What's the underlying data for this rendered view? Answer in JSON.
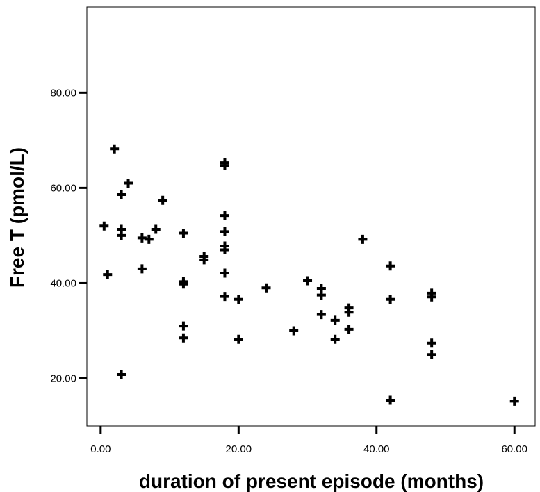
{
  "chart_data": {
    "type": "scatter",
    "title": "",
    "xlabel": "duration of present episode (months)",
    "ylabel": "Free T (pmol/L)",
    "xlim": [
      -2,
      63
    ],
    "ylim": [
      10,
      98
    ],
    "xticks": [
      {
        "value": 0,
        "label": "0.00"
      },
      {
        "value": 20,
        "label": "20.00"
      },
      {
        "value": 40,
        "label": "40.00"
      },
      {
        "value": 60,
        "label": "60.00"
      }
    ],
    "yticks": [
      {
        "value": 20,
        "label": "20.00"
      },
      {
        "value": 40,
        "label": "40.00"
      },
      {
        "value": 60,
        "label": "60.00"
      },
      {
        "value": 80,
        "label": "80.00"
      }
    ],
    "grid": false,
    "marker": "plus",
    "color": "#000000",
    "points": [
      {
        "x": 0.5,
        "y": 52.0
      },
      {
        "x": 1,
        "y": 41.8
      },
      {
        "x": 2,
        "y": 68.2
      },
      {
        "x": 3,
        "y": 58.6
      },
      {
        "x": 3,
        "y": 51.3
      },
      {
        "x": 3,
        "y": 50.0
      },
      {
        "x": 3,
        "y": 20.8
      },
      {
        "x": 4,
        "y": 61.0
      },
      {
        "x": 6,
        "y": 49.5
      },
      {
        "x": 6,
        "y": 43.0
      },
      {
        "x": 7,
        "y": 49.2
      },
      {
        "x": 8,
        "y": 51.3
      },
      {
        "x": 9,
        "y": 57.4
      },
      {
        "x": 12,
        "y": 50.5
      },
      {
        "x": 12,
        "y": 40.3
      },
      {
        "x": 12,
        "y": 39.8
      },
      {
        "x": 12,
        "y": 31.0
      },
      {
        "x": 12,
        "y": 28.5
      },
      {
        "x": 15,
        "y": 45.6
      },
      {
        "x": 15,
        "y": 44.9
      },
      {
        "x": 18,
        "y": 65.3
      },
      {
        "x": 18,
        "y": 64.7
      },
      {
        "x": 18,
        "y": 54.2
      },
      {
        "x": 18,
        "y": 50.8
      },
      {
        "x": 18,
        "y": 47.8
      },
      {
        "x": 18,
        "y": 47.0
      },
      {
        "x": 18,
        "y": 42.1
      },
      {
        "x": 18,
        "y": 37.2
      },
      {
        "x": 20,
        "y": 36.6
      },
      {
        "x": 20,
        "y": 28.2
      },
      {
        "x": 24,
        "y": 39.0
      },
      {
        "x": 28,
        "y": 30.0
      },
      {
        "x": 30,
        "y": 40.5
      },
      {
        "x": 32,
        "y": 38.9
      },
      {
        "x": 32,
        "y": 37.5
      },
      {
        "x": 32,
        "y": 33.4
      },
      {
        "x": 34,
        "y": 32.2
      },
      {
        "x": 34,
        "y": 28.2
      },
      {
        "x": 36,
        "y": 34.8
      },
      {
        "x": 36,
        "y": 33.9
      },
      {
        "x": 36,
        "y": 30.3
      },
      {
        "x": 38,
        "y": 49.2
      },
      {
        "x": 42,
        "y": 43.6
      },
      {
        "x": 42,
        "y": 36.6
      },
      {
        "x": 42,
        "y": 15.4
      },
      {
        "x": 48,
        "y": 37.9
      },
      {
        "x": 48,
        "y": 37.1
      },
      {
        "x": 48,
        "y": 27.4
      },
      {
        "x": 48,
        "y": 25.0
      },
      {
        "x": 60,
        "y": 15.2
      }
    ]
  }
}
